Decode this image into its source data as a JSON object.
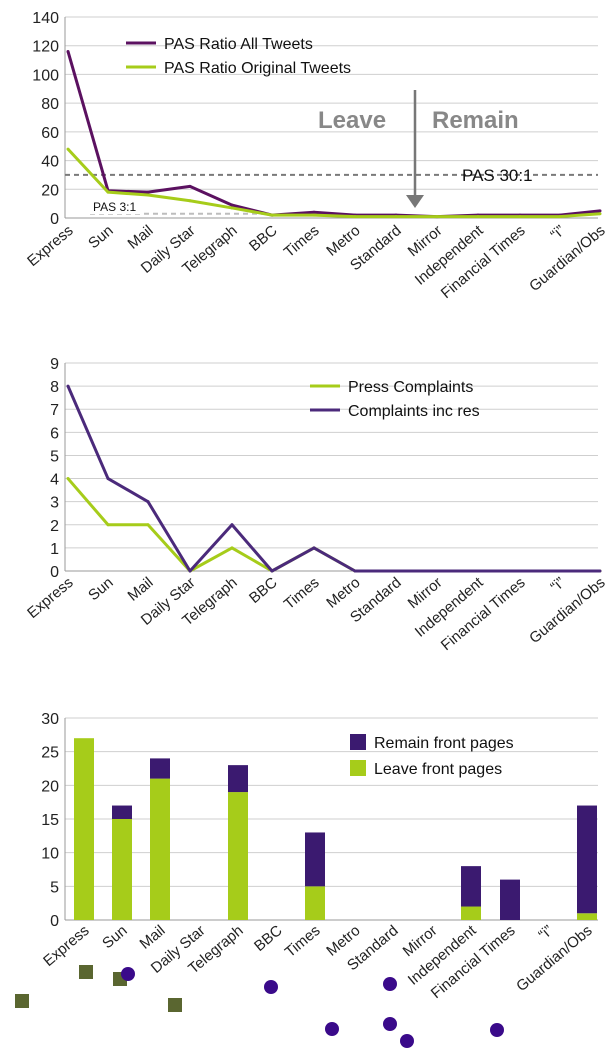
{
  "colors": {
    "purple": "#5b1160",
    "indigo": "#4b2a7b",
    "lime": "#a6cc1a",
    "dark_purple": "#3b1a70",
    "axis": "#9a9a9a",
    "grid": "#cfcfcf",
    "ref_dash": "#7a7a7a",
    "annotation": "#888888",
    "marker_square": "#5a6630",
    "marker_circle": "#3a0a8a"
  },
  "chart_data": [
    {
      "type": "line",
      "categories": [
        "Express",
        "Sun",
        "Mail",
        "Daily Star",
        "Telegraph",
        "BBC",
        "Times",
        "Metro",
        "Standard",
        "Mirror",
        "Independent",
        "Financial Times",
        "“i”",
        "Guardian/Obs"
      ],
      "series": [
        {
          "name": "PAS Ratio All Tweets",
          "color": "#5b1160",
          "values": [
            116,
            19,
            18,
            22,
            9,
            2,
            4,
            2,
            2,
            1,
            2,
            2,
            2,
            5
          ]
        },
        {
          "name": "PAS Ratio Original Tweets",
          "color": "#a6cc1a",
          "values": [
            48,
            18,
            16,
            12,
            7,
            2,
            2,
            1,
            1,
            1,
            1,
            1,
            1,
            3
          ]
        }
      ],
      "yticks": [
        0,
        20,
        40,
        60,
        80,
        100,
        120,
        140
      ],
      "ylim": [
        0,
        140
      ],
      "grid": "horizontal",
      "legend": "top-center",
      "reference_lines": [
        {
          "label": "PAS 30:1",
          "value": 30
        },
        {
          "label": "PAS 3:1",
          "value": 3
        }
      ],
      "annotations": {
        "left": "Leave",
        "right": "Remain",
        "arrow_at": "Mirror"
      }
    },
    {
      "type": "line",
      "categories": [
        "Express",
        "Sun",
        "Mail",
        "Daily Star",
        "Telegraph",
        "BBC",
        "Times",
        "Metro",
        "Standard",
        "Mirror",
        "Independent",
        "Financial Times",
        "“i”",
        "Guardian/Obs"
      ],
      "series": [
        {
          "name": "Press Complaints",
          "color": "#a6cc1a",
          "values": [
            4,
            2,
            2,
            0,
            1,
            0,
            1,
            0,
            0,
            0,
            0,
            0,
            0,
            0
          ]
        },
        {
          "name": "Complaints inc res",
          "color": "#4b2a7b",
          "values": [
            8,
            4,
            3,
            0,
            2,
            0,
            1,
            0,
            0,
            0,
            0,
            0,
            0,
            0
          ]
        }
      ],
      "yticks": [
        0,
        1,
        2,
        3,
        4,
        5,
        6,
        7,
        8,
        9
      ],
      "ylim": [
        0,
        9
      ],
      "grid": "horizontal",
      "legend": "top-right"
    },
    {
      "type": "bar",
      "stacked": true,
      "categories": [
        "Express",
        "Sun",
        "Mail",
        "Daily Star",
        "Telegraph",
        "BBC",
        "Times",
        "Metro",
        "Standard",
        "Mirror",
        "Independent",
        "Financial Times",
        "“i”",
        "Guardian/Obs"
      ],
      "series": [
        {
          "name": "Leave front pages",
          "color": "#a6cc1a",
          "values": [
            27,
            15,
            21,
            0,
            19,
            0,
            5,
            0,
            0,
            0,
            2,
            0,
            0,
            1
          ]
        },
        {
          "name": "Remain front pages",
          "color": "#3b1a70",
          "values": [
            0,
            2,
            3,
            0,
            4,
            0,
            8,
            0,
            0,
            0,
            6,
            6,
            0,
            16
          ]
        }
      ],
      "legend_order": [
        "Remain front pages",
        "Leave front pages"
      ],
      "yticks": [
        0,
        5,
        10,
        15,
        20,
        25,
        30
      ],
      "ylim": [
        0,
        30
      ],
      "grid": "horizontal",
      "legend": "top-right",
      "markers": [
        {
          "category": "Express",
          "shape": "square",
          "leans": "Leave"
        },
        {
          "category": "Sun",
          "shape": "square",
          "leans": "Leave"
        },
        {
          "category": "Mail",
          "shape": "square",
          "leans": "Leave"
        },
        {
          "category": "Telegraph",
          "shape": "square",
          "leans": "Leave"
        },
        {
          "category": "Mail",
          "shape": "circle",
          "leans": "Remain"
        },
        {
          "category": "Times",
          "shape": "circle",
          "leans": "Remain"
        },
        {
          "category": "Standard",
          "shape": "circle",
          "leans": "Remain"
        },
        {
          "category": "Mirror",
          "shape": "circle",
          "leans": "Remain"
        },
        {
          "category": "Independent",
          "shape": "circle",
          "leans": "Remain"
        },
        {
          "category": "Financial Times",
          "shape": "circle",
          "leans": "Remain"
        },
        {
          "category": "Guardian/Obs",
          "shape": "circle",
          "leans": "Remain"
        }
      ]
    }
  ]
}
